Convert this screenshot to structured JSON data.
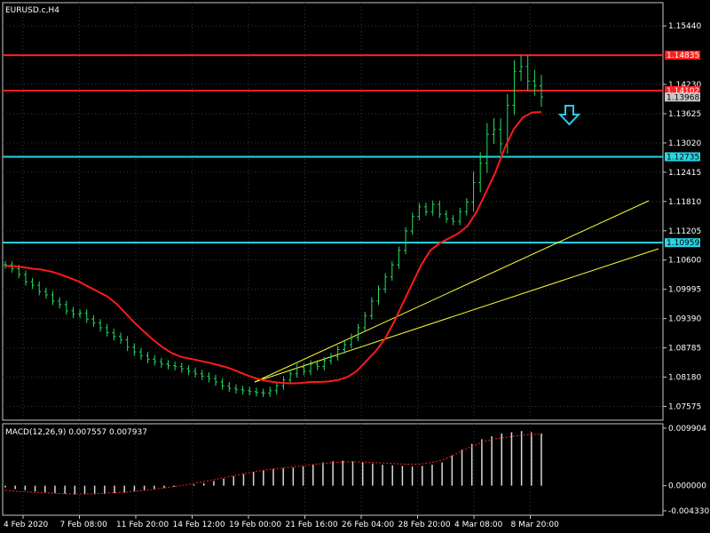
{
  "window": {
    "title": "EURUSD.c,H4"
  },
  "colors": {
    "background": "#000000",
    "grid": "#2b3a3a",
    "frame": "#c8c8c8",
    "candle": "#22e05a",
    "moving_average": "#ff1a1a",
    "resistance_line": "#ff2020",
    "support_line": "#26d7e6",
    "trend_line": "#ffff33",
    "macd_histogram": "#d9d9d9",
    "macd_signal": "#ff2020",
    "arrow": "#29c7e8"
  },
  "price_axis": {
    "ticks": [
      "1.15440",
      "1.14230",
      "1.13625",
      "1.13020",
      "1.12415",
      "1.11810",
      "1.11205",
      "1.10600",
      "1.09995",
      "1.09390",
      "1.08785",
      "1.08180",
      "1.07575"
    ],
    "tick_values": [
      1.1544,
      1.1423,
      1.13625,
      1.1302,
      1.12415,
      1.1181,
      1.11205,
      1.106,
      1.09995,
      1.0939,
      1.08785,
      1.0818,
      1.07575
    ],
    "range": [
      1.0729,
      1.1592
    ]
  },
  "horizontal_lines": [
    {
      "label": "1.14835",
      "value": 1.14835,
      "kind": "resistance"
    },
    {
      "label": "1.14102",
      "value": 1.14102,
      "kind": "resistance"
    },
    {
      "label": "1.12735",
      "value": 1.12735,
      "kind": "support"
    },
    {
      "label": "1.10959",
      "value": 1.10959,
      "kind": "support"
    }
  ],
  "current_price": {
    "label": "1.13968",
    "value": 1.13968
  },
  "time_axis": {
    "labels": [
      "4 Feb 2020",
      "7 Feb 08:00",
      "11 Feb 20:00",
      "14 Feb 12:00",
      "19 Feb 00:00",
      "21 Feb 16:00",
      "26 Feb 04:00",
      "28 Feb 20:00",
      "4 Mar 08:00",
      "8 Mar 20:00"
    ]
  },
  "macd": {
    "title": "MACD(12,26,9) 0.007557 0.007937",
    "ticks": [
      "0.009904",
      "0.000000",
      "-0.004330"
    ],
    "tick_values": [
      0.009904,
      0.0,
      -0.00433
    ]
  },
  "chart_data": {
    "type": "line",
    "symbol": "EURUSD.c",
    "timeframe": "H4",
    "series": [
      {
        "kind": "close",
        "values": [
          1.105,
          1.1042,
          1.103,
          1.1015,
          1.1008,
          1.0995,
          1.0988,
          1.0975,
          1.0968,
          1.0955,
          1.0948,
          1.095,
          1.0938,
          1.093,
          1.092,
          1.091,
          1.0902,
          1.0895,
          1.088,
          1.087,
          1.0862,
          1.0855,
          1.085,
          1.0845,
          1.0842,
          1.084,
          1.0835,
          1.083,
          1.0825,
          1.082,
          1.0815,
          1.0808,
          1.08,
          1.0795,
          1.0792,
          1.079,
          1.0788,
          1.0786,
          1.0785,
          1.079,
          1.08,
          1.0812,
          1.0825,
          1.0838,
          1.083,
          1.0845,
          1.084,
          1.0852,
          1.086,
          1.0875,
          1.0885,
          1.09,
          1.092,
          1.0945,
          1.0975,
          1.1,
          1.1025,
          1.105,
          1.108,
          1.112,
          1.115,
          1.117,
          1.116,
          1.1175,
          1.1155,
          1.1145,
          1.114,
          1.116,
          1.118,
          1.122,
          1.126,
          1.132,
          1.133,
          1.13,
          1.138,
          1.145,
          1.146,
          1.143,
          1.142,
          1.1397
        ]
      },
      {
        "kind": "moving_average",
        "values": [
          1.1048,
          1.1047,
          1.1045,
          1.1042,
          1.104,
          1.1036,
          1.103,
          1.1023,
          1.1015,
          1.1005,
          1.0995,
          1.0985,
          1.097,
          1.095,
          1.093,
          1.0912,
          1.0895,
          1.088,
          1.0868,
          1.086,
          1.0856,
          1.0852,
          1.0848,
          1.0843,
          1.0838,
          1.0831,
          1.0823,
          1.0816,
          1.0811,
          1.0808,
          1.0806,
          1.0805,
          1.0806,
          1.0808,
          1.0808,
          1.0809,
          1.0812,
          1.0818,
          1.083,
          1.085,
          1.087,
          1.0895,
          1.093,
          1.097,
          1.101,
          1.105,
          1.108,
          1.1095,
          1.1105,
          1.1115,
          1.113,
          1.116,
          1.12,
          1.124,
          1.129,
          1.133,
          1.1355,
          1.1365,
          1.1366
        ]
      }
    ],
    "macd_histogram": [
      -0.0003,
      -0.0006,
      -0.0008,
      -0.001,
      -0.0012,
      -0.0013,
      -0.0014,
      -0.0015,
      -0.0015,
      -0.0015,
      -0.0014,
      -0.0013,
      -0.0012,
      -0.001,
      -0.0008,
      -0.0006,
      -0.0004,
      -0.0002,
      0.0,
      0.0002,
      0.0004,
      0.0008,
      0.0012,
      0.0016,
      0.002,
      0.0024,
      0.0027,
      0.0029,
      0.003,
      0.0031,
      0.0033,
      0.0036,
      0.004,
      0.0042,
      0.0043,
      0.0042,
      0.004,
      0.0038,
      0.0036,
      0.0035,
      0.0034,
      0.0033,
      0.0034,
      0.0036,
      0.004,
      0.0052,
      0.0062,
      0.0072,
      0.008,
      0.0085,
      0.009,
      0.0092,
      0.0094,
      0.0092,
      0.009
    ],
    "macd_signal": [
      -0.0008,
      -0.001,
      -0.0011,
      -0.0012,
      -0.0013,
      -0.0014,
      -0.0014,
      -0.0014,
      -0.0013,
      -0.0012,
      -0.0011,
      -0.0009,
      -0.0007,
      -0.0004,
      -0.0001,
      0.0002,
      0.0006,
      0.001,
      0.0014,
      0.0018,
      0.0022,
      0.0026,
      0.0029,
      0.0031,
      0.0033,
      0.0036,
      0.0038,
      0.004,
      0.0041,
      0.0041,
      0.004,
      0.0039,
      0.0038,
      0.0037,
      0.0037,
      0.004,
      0.0045,
      0.0055,
      0.0065,
      0.0074,
      0.008,
      0.0083,
      0.0086,
      0.0088,
      0.0089
    ]
  }
}
